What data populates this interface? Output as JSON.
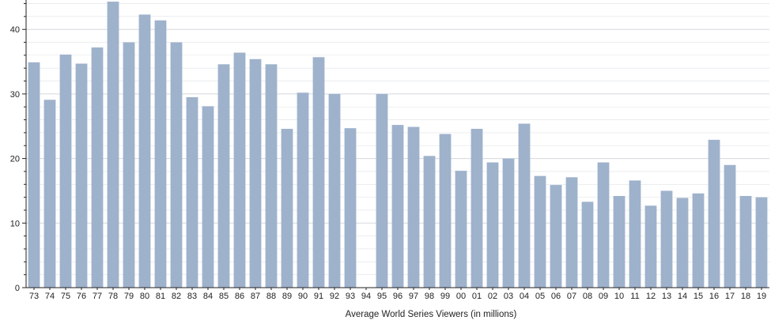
{
  "chart_data": {
    "type": "bar",
    "title": "",
    "xlabel": "Average World Series Viewers (in millions)",
    "ylabel": "",
    "ylim": [
      0,
      44
    ],
    "yticks": [
      0,
      10,
      20,
      30,
      40
    ],
    "grid": true,
    "legend": "none",
    "bar_color": "#9fb2cc",
    "grid_color": "#d4d8de",
    "axis_color": "#222222",
    "categories": [
      "73",
      "74",
      "75",
      "76",
      "77",
      "78",
      "79",
      "80",
      "81",
      "82",
      "83",
      "84",
      "85",
      "86",
      "87",
      "88",
      "89",
      "90",
      "91",
      "92",
      "93",
      "94",
      "95",
      "96",
      "97",
      "98",
      "99",
      "00",
      "01",
      "02",
      "03",
      "04",
      "05",
      "06",
      "07",
      "08",
      "09",
      "10",
      "11",
      "12",
      "13",
      "14",
      "15",
      "16",
      "17",
      "18",
      "19"
    ],
    "values": [
      34.9,
      29.1,
      36.1,
      34.7,
      37.2,
      44.3,
      38.0,
      42.3,
      41.4,
      38.0,
      29.5,
      28.1,
      34.6,
      36.4,
      35.4,
      34.6,
      24.6,
      30.2,
      35.7,
      30.0,
      24.7,
      null,
      30.0,
      25.2,
      24.9,
      20.4,
      23.8,
      18.1,
      24.6,
      19.4,
      20.0,
      25.4,
      17.3,
      15.9,
      17.1,
      13.3,
      19.4,
      14.2,
      16.6,
      12.7,
      15.0,
      13.9,
      14.6,
      22.9,
      19.0,
      14.2,
      14.0
    ]
  }
}
